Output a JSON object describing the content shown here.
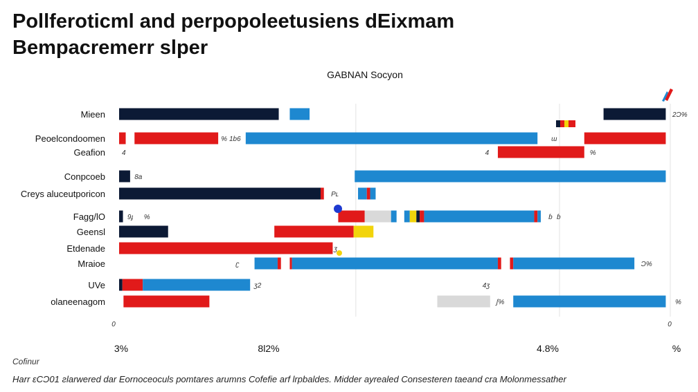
{
  "title": {
    "line1": "Pollferoticml and perpopoleetusiens dEixmam",
    "line2": "Bempacremerr slper"
  },
  "source_label": "Cofinur",
  "footnote": "Harr ɛCƆ01 ƨlarwered dar Eornoceoculs pomtares arumns Cofefie arf lrpbaldes.  Midder  ayrealed Consesteren taeand cra Molonmessather",
  "chart_data": {
    "type": "bar",
    "orientation": "horizontal",
    "title": "Pollferoticml and perpopoleetusiens dEixmam Bempacremerr slper",
    "subtitle": "GABNAN Socyon",
    "categories": [
      "Mieen",
      "Peoelcondoomen",
      "Geafion",
      "Conpcoeb",
      "Creys aluceutporicon",
      "Fagg/lO",
      "Geensl",
      "Etdenade",
      "Mraioe",
      "UVe",
      "olaneenagom"
    ],
    "x_tick_labels": [
      "3%",
      "8l2%",
      "4.8%",
      "%"
    ],
    "axis_zero_labels": [
      "0",
      "0"
    ],
    "xlim": [
      0,
      100
    ],
    "grid": true,
    "colors": {
      "navy": "#0c1a35",
      "blue": "#1e88d0",
      "red": "#e11a1a",
      "yellow": "#f2d40b",
      "gray": "#d9d9d9"
    },
    "series_note": "segments list start and end positions in percent of the axis range",
    "rows": [
      {
        "category": "Mieen",
        "segments": [
          {
            "start": 0,
            "end": 29,
            "color": "navy"
          },
          {
            "start": 31,
            "end": 34.6,
            "color": "blue"
          },
          {
            "start": 88,
            "end": 99.3,
            "color": "navy"
          }
        ],
        "labels": [
          {
            "at": 100.5,
            "text": "2Ɔ%"
          }
        ]
      },
      {
        "category": "Peoelcondoomen",
        "segments": [
          {
            "start": 0,
            "end": 1.2,
            "color": "red"
          },
          {
            "start": 2.8,
            "end": 18,
            "color": "red"
          },
          {
            "start": 23,
            "end": 76,
            "color": "blue"
          },
          {
            "start": 84.5,
            "end": 99.3,
            "color": "red"
          }
        ],
        "labels": [
          {
            "at": 18.5,
            "text": "%"
          },
          {
            "at": 20,
            "text": "1b6"
          },
          {
            "at": 78.5,
            "text": "ɯ"
          }
        ]
      },
      {
        "category": "Geafion",
        "segments": [
          {
            "start": 68.8,
            "end": 84.5,
            "color": "red"
          }
        ],
        "labels": [
          {
            "at": 0.5,
            "text": "4"
          },
          {
            "at": 66.5,
            "text": "4"
          },
          {
            "at": 85.5,
            "text": "%"
          }
        ]
      },
      {
        "category": "Conpcoeb",
        "segments": [
          {
            "start": 0,
            "end": 2,
            "color": "navy"
          },
          {
            "start": 42.8,
            "end": 99.3,
            "color": "blue"
          }
        ],
        "labels": [
          {
            "at": 2.8,
            "text": "8a"
          }
        ]
      },
      {
        "category": "Creys aluceutporicon",
        "segments": [
          {
            "start": 0,
            "end": 36.6,
            "color": "navy"
          },
          {
            "start": 36.6,
            "end": 37.2,
            "color": "red"
          },
          {
            "start": 43.4,
            "end": 45,
            "color": "blue"
          },
          {
            "start": 45,
            "end": 45.6,
            "color": "red"
          },
          {
            "start": 45.6,
            "end": 46.6,
            "color": "blue"
          }
        ],
        "labels": [
          {
            "at": 38.5,
            "text": "Pʟ"
          }
        ]
      },
      {
        "category": "Fagg/lO",
        "segments": [
          {
            "start": 0,
            "end": 0.7,
            "color": "navy"
          },
          {
            "start": 39.8,
            "end": 46.2,
            "color": "red"
          },
          {
            "start": 44.6,
            "end": 49.4,
            "color": "gray"
          },
          {
            "start": 49.4,
            "end": 50.4,
            "color": "blue"
          },
          {
            "start": 51.8,
            "end": 52.8,
            "color": "blue"
          },
          {
            "start": 52.8,
            "end": 54,
            "color": "yellow"
          },
          {
            "start": 54,
            "end": 54.6,
            "color": "navy"
          },
          {
            "start": 54.6,
            "end": 55.4,
            "color": "red"
          },
          {
            "start": 55.4,
            "end": 56.4,
            "color": "blue"
          },
          {
            "start": 55.6,
            "end": 75.4,
            "color": "blue"
          },
          {
            "start": 75.4,
            "end": 76,
            "color": "red"
          },
          {
            "start": 76,
            "end": 76.6,
            "color": "blue"
          }
        ],
        "labels": [
          {
            "at": 1.5,
            "text": "9ɟ"
          },
          {
            "at": 4.5,
            "text": "%"
          },
          {
            "at": 78,
            "text": "ɓ"
          },
          {
            "at": 79.5,
            "text": "ɓ"
          }
        ]
      },
      {
        "category": "Geensl",
        "segments": [
          {
            "start": 0,
            "end": 8.9,
            "color": "navy"
          },
          {
            "start": 28.2,
            "end": 42.6,
            "color": "red"
          },
          {
            "start": 42.6,
            "end": 46.2,
            "color": "yellow"
          }
        ],
        "labels": []
      },
      {
        "category": "Etdenade",
        "segments": [
          {
            "start": 0,
            "end": 38.8,
            "color": "red"
          }
        ],
        "labels": [
          {
            "at": 39,
            "text": "ʒ"
          }
        ]
      },
      {
        "category": "Mraioe",
        "segments": [
          {
            "start": 24.6,
            "end": 28.8,
            "color": "blue"
          },
          {
            "start": 28.8,
            "end": 29.4,
            "color": "red"
          },
          {
            "start": 31,
            "end": 31.4,
            "color": "red"
          },
          {
            "start": 31.4,
            "end": 68.8,
            "color": "blue"
          },
          {
            "start": 68.8,
            "end": 69.4,
            "color": "red"
          },
          {
            "start": 71,
            "end": 71.6,
            "color": "red"
          },
          {
            "start": 71.6,
            "end": 93.6,
            "color": "blue"
          }
        ],
        "labels": [
          {
            "at": 21.2,
            "text": "ʗ"
          },
          {
            "at": 94.8,
            "text": "Ɔ%"
          }
        ]
      },
      {
        "category": "UVe",
        "segments": [
          {
            "start": 0,
            "end": 0.6,
            "color": "navy"
          },
          {
            "start": 0.6,
            "end": 4.3,
            "color": "red"
          },
          {
            "start": 4.3,
            "end": 23.8,
            "color": "blue"
          }
        ],
        "labels": [
          {
            "at": 24.5,
            "text": "ʒ2"
          },
          {
            "at": 66,
            "text": "4ʒ"
          }
        ]
      },
      {
        "category": "olaneenagom",
        "segments": [
          {
            "start": 0.8,
            "end": 16.4,
            "color": "red"
          },
          {
            "start": 57.8,
            "end": 67.4,
            "color": "gray"
          },
          {
            "start": 71.6,
            "end": 99.3,
            "color": "blue"
          }
        ],
        "labels": [
          {
            "at": 68.5,
            "text": "ʃ%"
          },
          {
            "at": 101,
            "text": "%"
          }
        ]
      }
    ]
  }
}
